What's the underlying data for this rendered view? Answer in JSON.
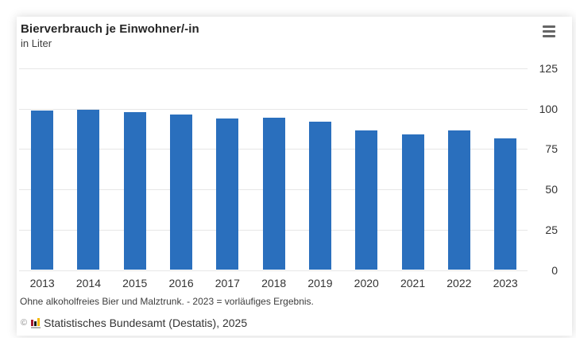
{
  "header": {
    "title": "Bierverbrauch je Einwohner/-in",
    "subtitle": "in Liter"
  },
  "menu": {
    "label": "chart-export-menu",
    "icon": "hamburger-icon",
    "icon_color": "#666666"
  },
  "chart_data": {
    "type": "bar",
    "title": "Bierverbrauch je Einwohner/-in",
    "subtitle": "in Liter",
    "unit": "Liter",
    "categories": [
      "2013",
      "2014",
      "2015",
      "2016",
      "2017",
      "2018",
      "2019",
      "2020",
      "2021",
      "2022",
      "2023"
    ],
    "values": [
      98.9,
      99.3,
      97.7,
      96.6,
      93.9,
      94.2,
      92.0,
      86.6,
      84.0,
      86.3,
      81.7
    ],
    "ylim": [
      0,
      125
    ],
    "yticks": [
      0,
      25,
      50,
      75,
      100,
      125
    ],
    "yaxis_position": "right",
    "grid": true,
    "legend": "none",
    "bar_color": "#2a6fbd",
    "grid_color": "#e7e7e7",
    "tick_label_color": "#333333"
  },
  "footer": {
    "note": "Ohne alkoholfreies Bier und Malztrunk. - 2023 = vorläufiges Ergebnis.",
    "copyright_symbol": "©",
    "copyright_text": "Statistisches Bundesamt (Destatis), 2025",
    "logo": "destatis-logo-icon"
  }
}
